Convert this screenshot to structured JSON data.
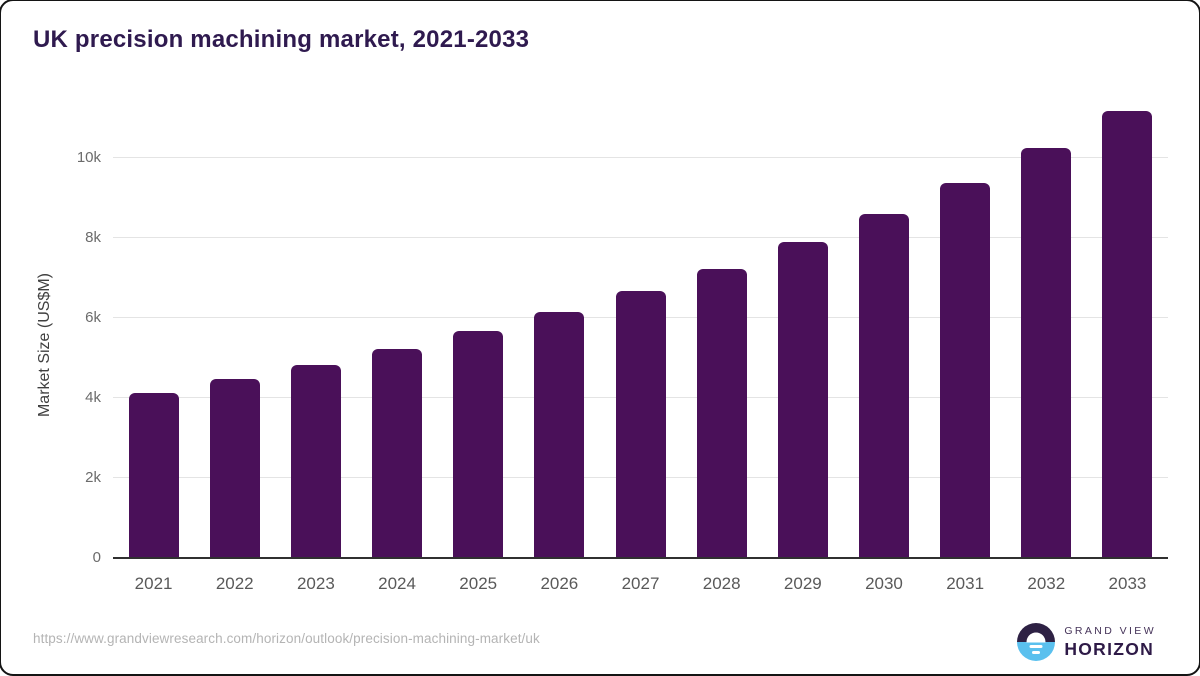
{
  "title": "UK precision machining market, 2021-2033",
  "chart_data": {
    "type": "bar",
    "title": "UK precision machining market, 2021-2033",
    "categories": [
      "2021",
      "2022",
      "2023",
      "2024",
      "2025",
      "2026",
      "2027",
      "2028",
      "2029",
      "2030",
      "2031",
      "2032",
      "2033"
    ],
    "values": [
      4120,
      4470,
      4820,
      5220,
      5670,
      6140,
      6670,
      7220,
      7890,
      8590,
      9370,
      10240,
      11170
    ],
    "xlabel": "",
    "ylabel": "Market Size (US$M)",
    "ylim": [
      0,
      11500
    ],
    "yticks": [
      0,
      2000,
      4000,
      6000,
      8000,
      10000
    ],
    "ytick_labels": [
      "0",
      "2k",
      "4k",
      "6k",
      "8k",
      "10k"
    ],
    "grid": "horizontal-only",
    "legend": "none",
    "bar_color": "#4a1059",
    "units": "US$M"
  },
  "footer": {
    "source_url": "https://www.grandviewresearch.com/horizon/outlook/precision-machining-market/uk",
    "brand": {
      "line1": "GRAND VIEW",
      "line2": "HORIZON",
      "icon": "horizon-sunrise-icon"
    }
  },
  "colors": {
    "title_text": "#2f1a4f",
    "bar": "#4a1059",
    "axis_line": "#303030",
    "gridline": "#e4e4e4",
    "tick_text": "#6b6b6b",
    "url_text": "#b4b4b4",
    "brand_purple": "#2e1a47",
    "brand_blue": "#5ac0ee"
  }
}
